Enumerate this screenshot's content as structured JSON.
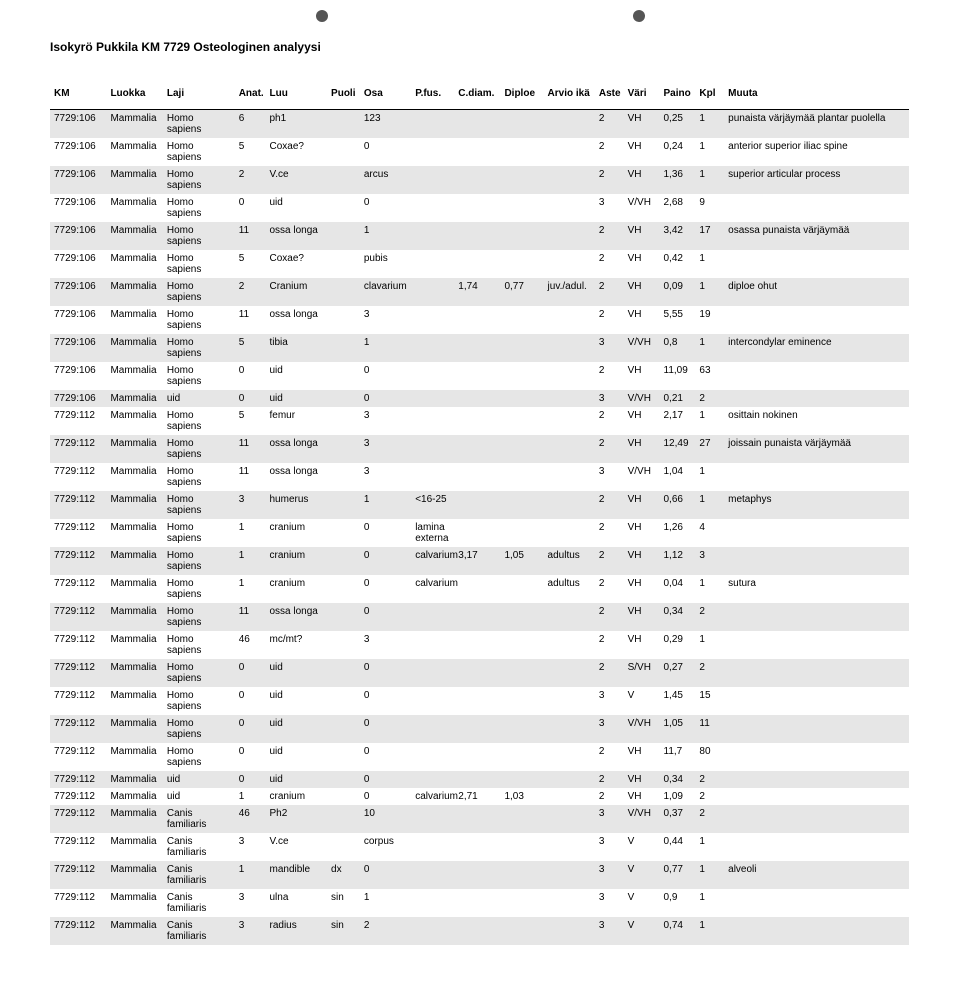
{
  "title": "Isokyrö Pukkila KM 7729 Osteologinen analyysi",
  "columns": [
    "KM",
    "Luokka",
    "Laji",
    "Anat.",
    "Luu",
    "Puoli",
    "Osa",
    "P.fus.",
    "C.diam.",
    "Diploe",
    "Arvio ikä",
    "Aste",
    "Väri",
    "Paino",
    "Kpl",
    "Muuta"
  ],
  "col_widths": [
    "55",
    "55",
    "70",
    "30",
    "60",
    "32",
    "50",
    "42",
    "45",
    "42",
    "50",
    "28",
    "35",
    "35",
    "28",
    "180"
  ],
  "rows": [
    {
      "shade": true,
      "c": [
        "7729:106",
        "Mammalia",
        "Homo sapiens",
        "6",
        "ph1",
        "",
        "123",
        "",
        "",
        "",
        "",
        "2",
        "VH",
        "0,25",
        "1",
        "punaista värjäymää plantar puolella"
      ]
    },
    {
      "shade": false,
      "c": [
        "7729:106",
        "Mammalia",
        "Homo sapiens",
        "5",
        "Coxae?",
        "",
        "0",
        "",
        "",
        "",
        "",
        "2",
        "VH",
        "0,24",
        "1",
        "anterior superior iliac spine"
      ]
    },
    {
      "shade": true,
      "c": [
        "7729:106",
        "Mammalia",
        "Homo sapiens",
        "2",
        "V.ce",
        "",
        "arcus",
        "",
        "",
        "",
        "",
        "2",
        "VH",
        "1,36",
        "1",
        "superior articular process"
      ]
    },
    {
      "shade": false,
      "c": [
        "7729:106",
        "Mammalia",
        "Homo sapiens",
        "0",
        "uid",
        "",
        "0",
        "",
        "",
        "",
        "",
        "3",
        "V/VH",
        "2,68",
        "9",
        ""
      ]
    },
    {
      "shade": true,
      "c": [
        "7729:106",
        "Mammalia",
        "Homo sapiens",
        "11",
        "ossa longa",
        "",
        "1",
        "",
        "",
        "",
        "",
        "2",
        "VH",
        "3,42",
        "17",
        "osassa punaista värjäymää"
      ]
    },
    {
      "shade": false,
      "c": [
        "7729:106",
        "Mammalia",
        "Homo sapiens",
        "5",
        "Coxae?",
        "",
        "pubis",
        "",
        "",
        "",
        "",
        "2",
        "VH",
        "0,42",
        "1",
        ""
      ]
    },
    {
      "shade": true,
      "c": [
        "7729:106",
        "Mammalia",
        "Homo sapiens",
        "2",
        "Cranium",
        "",
        "clavarium",
        "",
        "1,74",
        "0,77",
        "juv./adul.",
        "2",
        "VH",
        "0,09",
        "1",
        "diploe ohut"
      ]
    },
    {
      "shade": false,
      "c": [
        "7729:106",
        "Mammalia",
        "Homo sapiens",
        "11",
        "ossa longa",
        "",
        "3",
        "",
        "",
        "",
        "",
        "2",
        "VH",
        "5,55",
        "19",
        ""
      ]
    },
    {
      "shade": true,
      "c": [
        "7729:106",
        "Mammalia",
        "Homo sapiens",
        "5",
        "tibia",
        "",
        "1",
        "",
        "",
        "",
        "",
        "3",
        "V/VH",
        "0,8",
        "1",
        "intercondylar eminence"
      ]
    },
    {
      "shade": false,
      "c": [
        "7729:106",
        "Mammalia",
        "Homo sapiens",
        "0",
        "uid",
        "",
        "0",
        "",
        "",
        "",
        "",
        "2",
        "VH",
        "11,09",
        "63",
        ""
      ]
    },
    {
      "shade": true,
      "c": [
        "7729:106",
        "Mammalia",
        "uid",
        "0",
        "uid",
        "",
        "0",
        "",
        "",
        "",
        "",
        "3",
        "V/VH",
        "0,21",
        "2",
        ""
      ]
    },
    {
      "shade": false,
      "c": [
        "7729:112",
        "Mammalia",
        "Homo sapiens",
        "5",
        "femur",
        "",
        "3",
        "",
        "",
        "",
        "",
        "2",
        "VH",
        "2,17",
        "1",
        "osittain nokinen"
      ]
    },
    {
      "shade": true,
      "c": [
        "7729:112",
        "Mammalia",
        "Homo sapiens",
        "11",
        "ossa longa",
        "",
        "3",
        "",
        "",
        "",
        "",
        "2",
        "VH",
        "12,49",
        "27",
        "joissain punaista värjäymää"
      ]
    },
    {
      "shade": false,
      "c": [
        "7729:112",
        "Mammalia",
        "Homo sapiens",
        "11",
        "ossa longa",
        "",
        "3",
        "",
        "",
        "",
        "",
        "3",
        "V/VH",
        "1,04",
        "1",
        ""
      ]
    },
    {
      "shade": true,
      "c": [
        "7729:112",
        "Mammalia",
        "Homo sapiens",
        "3",
        "humerus",
        "",
        "1",
        "<16-25",
        "",
        "",
        "",
        "2",
        "VH",
        "0,66",
        "1",
        "metaphys"
      ]
    },
    {
      "shade": false,
      "c": [
        "7729:112",
        "Mammalia",
        "Homo sapiens",
        "1",
        "cranium",
        "",
        "0",
        "lamina externa",
        "",
        "",
        "",
        "2",
        "VH",
        "1,26",
        "4",
        ""
      ]
    },
    {
      "shade": true,
      "c": [
        "7729:112",
        "Mammalia",
        "Homo sapiens",
        "1",
        "cranium",
        "",
        "0",
        "calvarium",
        "3,17",
        "1,05",
        "adultus",
        "2",
        "VH",
        "1,12",
        "3",
        ""
      ]
    },
    {
      "shade": false,
      "c": [
        "7729:112",
        "Mammalia",
        "Homo sapiens",
        "1",
        "cranium",
        "",
        "0",
        "calvarium",
        "",
        "",
        "adultus",
        "2",
        "VH",
        "0,04",
        "1",
        "sutura"
      ]
    },
    {
      "shade": true,
      "c": [
        "7729:112",
        "Mammalia",
        "Homo sapiens",
        "11",
        "ossa longa",
        "",
        "0",
        "",
        "",
        "",
        "",
        "2",
        "VH",
        "0,34",
        "2",
        ""
      ]
    },
    {
      "shade": false,
      "c": [
        "7729:112",
        "Mammalia",
        "Homo sapiens",
        "46",
        "mc/mt?",
        "",
        "3",
        "",
        "",
        "",
        "",
        "2",
        "VH",
        "0,29",
        "1",
        ""
      ]
    },
    {
      "shade": true,
      "c": [
        "7729:112",
        "Mammalia",
        "Homo sapiens",
        "0",
        "uid",
        "",
        "0",
        "",
        "",
        "",
        "",
        "2",
        "S/VH",
        "0,27",
        "2",
        ""
      ]
    },
    {
      "shade": false,
      "c": [
        "7729:112",
        "Mammalia",
        "Homo sapiens",
        "0",
        "uid",
        "",
        "0",
        "",
        "",
        "",
        "",
        "3",
        "V",
        "1,45",
        "15",
        ""
      ]
    },
    {
      "shade": true,
      "c": [
        "7729:112",
        "Mammalia",
        "Homo sapiens",
        "0",
        "uid",
        "",
        "0",
        "",
        "",
        "",
        "",
        "3",
        "V/VH",
        "1,05",
        "11",
        ""
      ]
    },
    {
      "shade": false,
      "c": [
        "7729:112",
        "Mammalia",
        "Homo sapiens",
        "0",
        "uid",
        "",
        "0",
        "",
        "",
        "",
        "",
        "2",
        "VH",
        "11,7",
        "80",
        ""
      ]
    },
    {
      "shade": true,
      "c": [
        "7729:112",
        "Mammalia",
        "uid",
        "0",
        "uid",
        "",
        "0",
        "",
        "",
        "",
        "",
        "2",
        "VH",
        "0,34",
        "2",
        ""
      ]
    },
    {
      "shade": false,
      "c": [
        "7729:112",
        "Mammalia",
        "uid",
        "1",
        "cranium",
        "",
        "0",
        "calvarium",
        "2,71",
        "1,03",
        "",
        "2",
        "VH",
        "1,09",
        "2",
        ""
      ]
    },
    {
      "shade": true,
      "c": [
        "7729:112",
        "Mammalia",
        "Canis familiaris",
        "46",
        "Ph2",
        "",
        "10",
        "",
        "",
        "",
        "",
        "3",
        "V/VH",
        "0,37",
        "2",
        ""
      ]
    },
    {
      "shade": false,
      "c": [
        "7729:112",
        "Mammalia",
        "Canis familiaris",
        "3",
        "V.ce",
        "",
        "corpus",
        "",
        "",
        "",
        "",
        "3",
        "V",
        "0,44",
        "1",
        ""
      ]
    },
    {
      "shade": true,
      "c": [
        "7729:112",
        "Mammalia",
        "Canis familiaris",
        "1",
        "mandible",
        "dx",
        "0",
        "",
        "",
        "",
        "",
        "3",
        "V",
        "0,77",
        "1",
        "alveoli"
      ]
    },
    {
      "shade": false,
      "c": [
        "7729:112",
        "Mammalia",
        "Canis familiaris",
        "3",
        "ulna",
        "sin",
        "1",
        "",
        "",
        "",
        "",
        "3",
        "V",
        "0,9",
        "1",
        ""
      ]
    },
    {
      "shade": true,
      "c": [
        "7729:112",
        "Mammalia",
        "Canis familiaris",
        "3",
        "radius",
        "sin",
        "2",
        "",
        "",
        "",
        "",
        "3",
        "V",
        "0,74",
        "1",
        ""
      ]
    }
  ]
}
